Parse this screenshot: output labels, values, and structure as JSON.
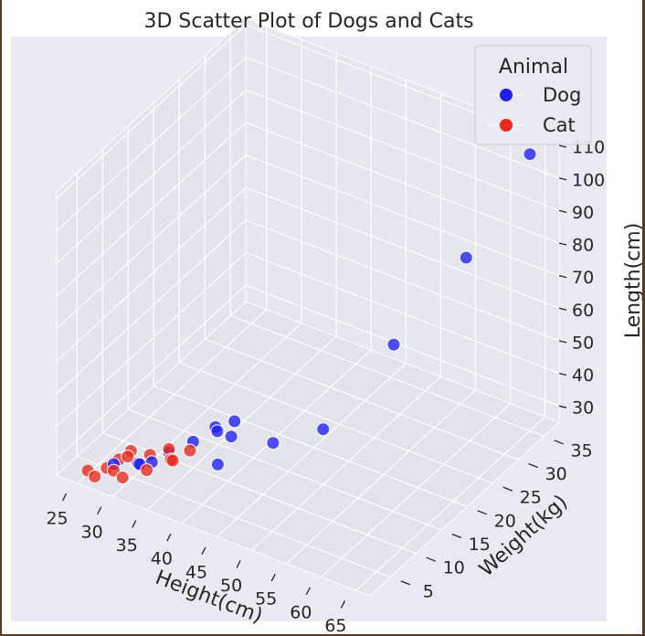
{
  "chart_data": {
    "type": "scatter",
    "dimensions": "3d",
    "title": "3D Scatter Plot of Dogs and Cats",
    "xlabel": "Height(cm)",
    "ylabel": "Weight(kg)",
    "zlabel": "Length(cm)",
    "xlim": [
      22,
      67
    ],
    "ylim": [
      1,
      38
    ],
    "zlim": [
      25,
      112
    ],
    "xticks": [
      "25",
      "30",
      "35",
      "40",
      "45",
      "50",
      "55",
      "60",
      "65"
    ],
    "yticks": [
      "5",
      "10",
      "15",
      "20",
      "25",
      "30",
      "35"
    ],
    "zticks": [
      "30",
      "40",
      "50",
      "60",
      "70",
      "80",
      "90",
      "100",
      "110"
    ],
    "grid": true,
    "legend": {
      "title": "Animal",
      "position": "top-right"
    },
    "colors": {
      "background": "#eaeaf2",
      "grid": "#ffffff",
      "text": "#262626"
    },
    "series": [
      {
        "name": "Dog",
        "color": "#1f1ff0",
        "x": [
          40,
          37,
          31,
          30,
          33,
          38,
          35,
          39,
          36,
          28,
          32,
          45,
          50,
          55,
          61,
          65
        ],
        "y": [
          8,
          12,
          5,
          6,
          8,
          14,
          10,
          12,
          13,
          4,
          6,
          12,
          15,
          22,
          28,
          35
        ],
        "z": [
          33,
          35,
          30,
          28,
          31,
          36,
          33,
          35,
          34,
          29,
          30,
          38,
          42,
          62,
          85,
          110
        ]
      },
      {
        "name": "Cat",
        "color": "#e8291c",
        "x": [
          25,
          28,
          30,
          27,
          29,
          31,
          33,
          35,
          32,
          34,
          36,
          30,
          26,
          28
        ],
        "y": [
          3,
          5,
          4,
          4,
          6,
          7,
          8,
          6,
          5,
          7,
          8,
          3,
          3,
          4
        ],
        "z": [
          26,
          29,
          33,
          27,
          31,
          30,
          32,
          33,
          29,
          31,
          34,
          28,
          25,
          27
        ]
      }
    ]
  }
}
